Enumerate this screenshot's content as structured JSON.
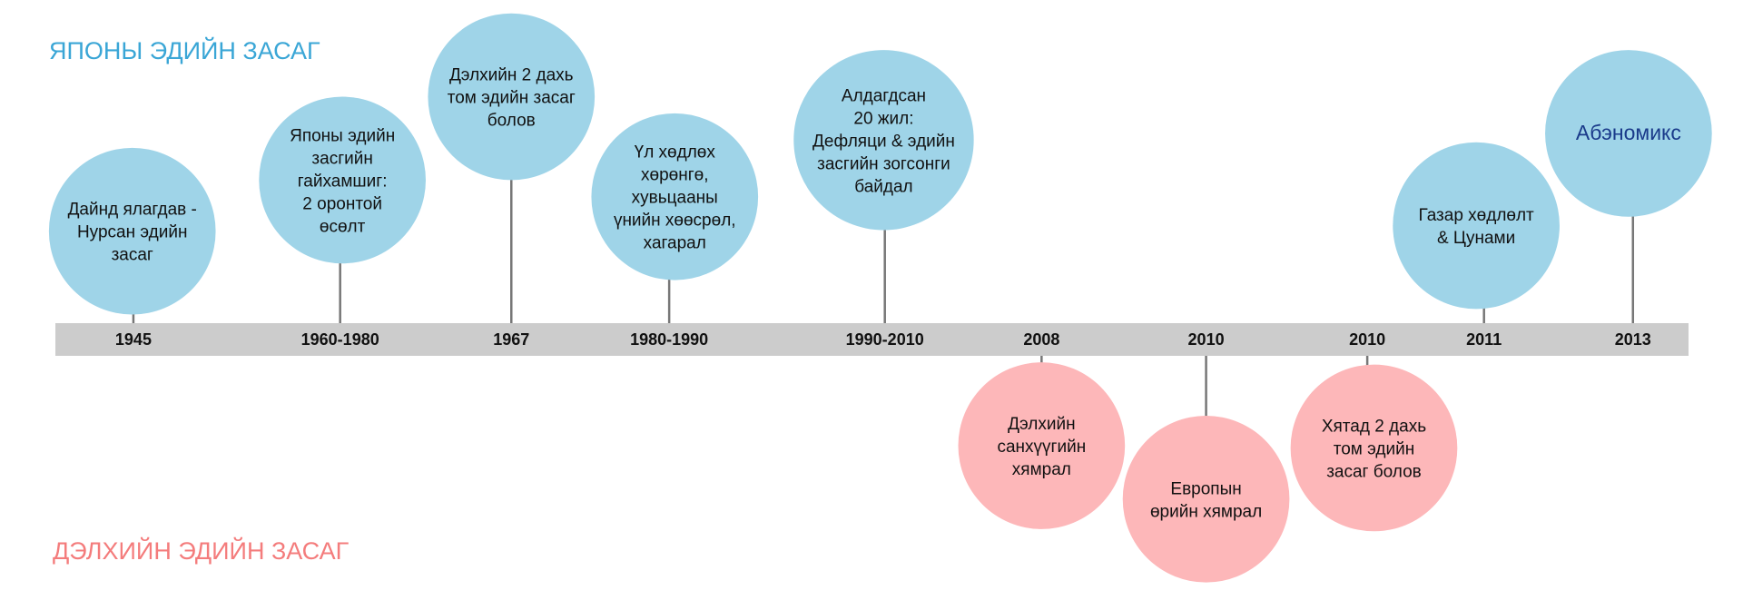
{
  "japan": {
    "heading": "ЯПОНЫ ЭДИЙН ЗАСАГ",
    "events": [
      {
        "year": "1945",
        "lines": [
          "Дайнд ялагдав -",
          "Нурсан эдийн",
          "засаг"
        ]
      },
      {
        "year": "1960-1980",
        "lines": [
          "Японы эдийн",
          "засгийн",
          "гайхамшиг:",
          "2 оронтой",
          "өсөлт"
        ]
      },
      {
        "year": "1967",
        "lines": [
          "Дэлхийн 2 дахь",
          "том эдийн засаг",
          "болов"
        ]
      },
      {
        "year": "1980-1990",
        "lines": [
          "Үл хөдлөх",
          "хөрөнгө,",
          "хувьцааны",
          "үнийн хөөсрөл,",
          "хагарал"
        ]
      },
      {
        "year": "1990-2010",
        "lines": [
          "Алдагдсан",
          "20 жил:",
          "Дефляци & эдийн",
          "засгийн зогсонги",
          "байдал"
        ]
      },
      {
        "year": "2011",
        "lines": [
          "Газар хөдлөлт",
          "& Цунами"
        ]
      },
      {
        "year": "2013",
        "lines": [
          "Абэномикс"
        ]
      }
    ]
  },
  "world": {
    "heading": "ДЭЛХИЙН ЭДИЙН ЗАСАГ",
    "events": [
      {
        "year": "2008",
        "lines": [
          "Дэлхийн",
          "санхүүгийн",
          "хямрал"
        ]
      },
      {
        "year": "2010",
        "lines": [
          "Европын",
          "өрийн хямрал"
        ]
      },
      {
        "year": "2010",
        "lines": [
          "Хятад 2 дахь",
          "том эдийн",
          "засаг болов"
        ]
      }
    ]
  }
}
